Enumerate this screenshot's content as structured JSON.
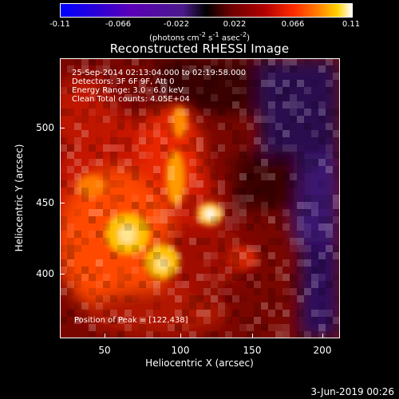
{
  "colorbar": {
    "ticks": [
      "-0.11",
      "-0.066",
      "-0.022",
      "0.022",
      "0.066",
      "0.11"
    ],
    "unit_html": "(photons cm<sup>-2</sup> s<sup>-1</sup> asec<sup>-2</sup>)"
  },
  "title": "Reconstructed RHESSI Image",
  "info": {
    "line1": "25-Sep-2014 02:13:04.000 to 02:19:58.000",
    "line2": "Detectors: 3F 6F 9F, Att 0",
    "line3": "Energy Range: 3.0 - 6.0 keV",
    "line4": "Clean     Total counts: 4.05E+04"
  },
  "peak": "Position of Peak = [122,438]",
  "axes": {
    "xlabel": "Heliocentric X (arcsec)",
    "ylabel": "Heliocentric Y (arcsec)",
    "xticks": [
      "50",
      "100",
      "150",
      "200"
    ],
    "yticks": [
      "500",
      "450",
      "400"
    ]
  },
  "timestamp": "3-Jun-2019 00:26"
}
